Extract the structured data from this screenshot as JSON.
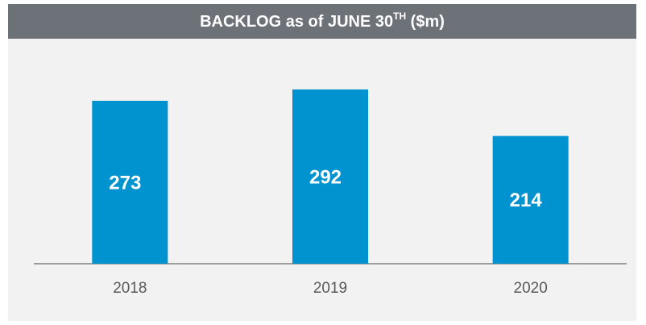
{
  "chart_data": {
    "type": "bar",
    "title": [
      "BACKLOG as of JUNE 30",
      "TH",
      " ($m)"
    ],
    "categories": [
      "2018",
      "2019",
      "2020"
    ],
    "values": [
      273,
      292,
      214
    ],
    "color": "#0093d0",
    "ylim": [
      0,
      300
    ],
    "value_labels_shown": true
  }
}
